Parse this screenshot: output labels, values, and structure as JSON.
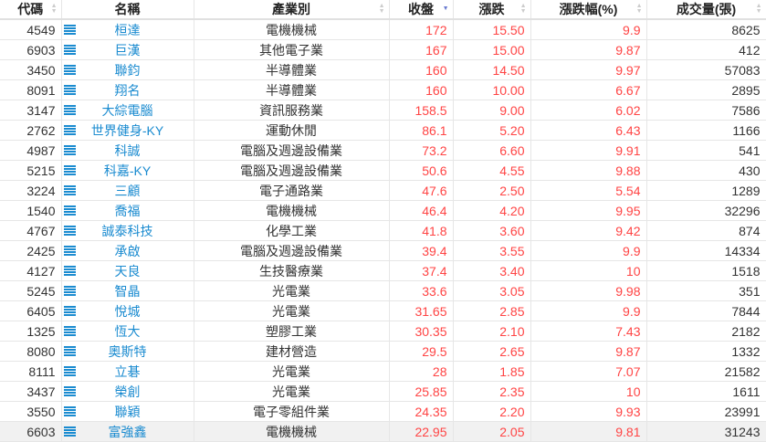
{
  "headers": {
    "code": "代碼",
    "name": "名稱",
    "industry": "產業別",
    "close": "收盤",
    "change": "漲跌",
    "change_pct": "漲跌幅(%)",
    "volume": "成交量(張)"
  },
  "sort": {
    "column": "close",
    "direction": "desc"
  },
  "colors": {
    "link": "#1a8bd0",
    "up": "#ff4444"
  },
  "rows": [
    {
      "code": "4549",
      "name": "桓達",
      "industry": "電機機械",
      "close": "172",
      "change": "15.50",
      "pct": "9.9",
      "volume": "8625"
    },
    {
      "code": "6903",
      "name": "巨漢",
      "industry": "其他電子業",
      "close": "167",
      "change": "15.00",
      "pct": "9.87",
      "volume": "412"
    },
    {
      "code": "3450",
      "name": "聯鈞",
      "industry": "半導體業",
      "close": "160",
      "change": "14.50",
      "pct": "9.97",
      "volume": "57083"
    },
    {
      "code": "8091",
      "name": "翔名",
      "industry": "半導體業",
      "close": "160",
      "change": "10.00",
      "pct": "6.67",
      "volume": "2895"
    },
    {
      "code": "3147",
      "name": "大綜電腦",
      "industry": "資訊服務業",
      "close": "158.5",
      "change": "9.00",
      "pct": "6.02",
      "volume": "7586"
    },
    {
      "code": "2762",
      "name": "世界健身-KY",
      "industry": "運動休閒",
      "close": "86.1",
      "change": "5.20",
      "pct": "6.43",
      "volume": "1166"
    },
    {
      "code": "4987",
      "name": "科誠",
      "industry": "電腦及週邊設備業",
      "close": "73.2",
      "change": "6.60",
      "pct": "9.91",
      "volume": "541"
    },
    {
      "code": "5215",
      "name": "科嘉-KY",
      "industry": "電腦及週邊設備業",
      "close": "50.6",
      "change": "4.55",
      "pct": "9.88",
      "volume": "430"
    },
    {
      "code": "3224",
      "name": "三顧",
      "industry": "電子通路業",
      "close": "47.6",
      "change": "2.50",
      "pct": "5.54",
      "volume": "1289"
    },
    {
      "code": "1540",
      "name": "喬福",
      "industry": "電機機械",
      "close": "46.4",
      "change": "4.20",
      "pct": "9.95",
      "volume": "32296"
    },
    {
      "code": "4767",
      "name": "誠泰科技",
      "industry": "化學工業",
      "close": "41.8",
      "change": "3.60",
      "pct": "9.42",
      "volume": "874"
    },
    {
      "code": "2425",
      "name": "承啟",
      "industry": "電腦及週邊設備業",
      "close": "39.4",
      "change": "3.55",
      "pct": "9.9",
      "volume": "14334"
    },
    {
      "code": "4127",
      "name": "天良",
      "industry": "生技醫療業",
      "close": "37.4",
      "change": "3.40",
      "pct": "10",
      "volume": "1518"
    },
    {
      "code": "5245",
      "name": "智晶",
      "industry": "光電業",
      "close": "33.6",
      "change": "3.05",
      "pct": "9.98",
      "volume": "351"
    },
    {
      "code": "6405",
      "name": "悅城",
      "industry": "光電業",
      "close": "31.65",
      "change": "2.85",
      "pct": "9.9",
      "volume": "7844"
    },
    {
      "code": "1325",
      "name": "恆大",
      "industry": "塑膠工業",
      "close": "30.35",
      "change": "2.10",
      "pct": "7.43",
      "volume": "2182"
    },
    {
      "code": "8080",
      "name": "奧斯特",
      "industry": "建材營造",
      "close": "29.5",
      "change": "2.65",
      "pct": "9.87",
      "volume": "1332"
    },
    {
      "code": "8111",
      "name": "立碁",
      "industry": "光電業",
      "close": "28",
      "change": "1.85",
      "pct": "7.07",
      "volume": "21582"
    },
    {
      "code": "3437",
      "name": "榮創",
      "industry": "光電業",
      "close": "25.85",
      "change": "2.35",
      "pct": "10",
      "volume": "1611"
    },
    {
      "code": "3550",
      "name": "聯穎",
      "industry": "電子零組件業",
      "close": "24.35",
      "change": "2.20",
      "pct": "9.93",
      "volume": "23991"
    },
    {
      "code": "6603",
      "name": "富強鑫",
      "industry": "電機機械",
      "close": "22.95",
      "change": "2.05",
      "pct": "9.81",
      "volume": "31243"
    }
  ]
}
